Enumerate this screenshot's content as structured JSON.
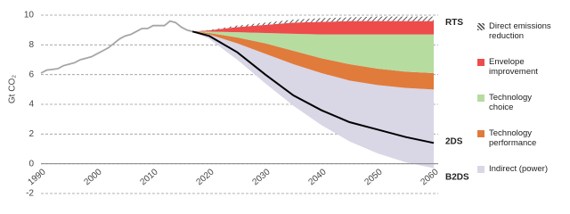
{
  "chart_data": {
    "type": "stacked_area",
    "y_label": "Gt CO₂",
    "xlim": [
      1990,
      2060
    ],
    "xticks": [
      1990,
      2000,
      2010,
      2020,
      2030,
      2040,
      2050,
      2060
    ],
    "ylim": [
      -2,
      10
    ],
    "yticks": [
      -2,
      0,
      2,
      4,
      6,
      8,
      10
    ],
    "grid": true,
    "history": {
      "color": "#a6a6a6",
      "x": [
        1990,
        1991,
        1992,
        1993,
        1994,
        1995,
        1996,
        1997,
        1998,
        1999,
        2000,
        2001,
        2002,
        2003,
        2004,
        2005,
        2006,
        2007,
        2008,
        2009,
        2010,
        2011,
        2012,
        2013,
        2014,
        2015,
        2016,
        2017
      ],
      "values": [
        6.1,
        6.3,
        6.35,
        6.4,
        6.6,
        6.7,
        6.8,
        7.0,
        7.1,
        7.2,
        7.4,
        7.6,
        7.8,
        8.1,
        8.4,
        8.6,
        8.7,
        8.9,
        9.1,
        9.1,
        9.3,
        9.3,
        9.3,
        9.6,
        9.5,
        9.2,
        9.0,
        8.9
      ]
    },
    "x": [
      2017,
      2020,
      2025,
      2030,
      2035,
      2040,
      2045,
      2050,
      2055,
      2060
    ],
    "top_label": "RTS",
    "lines": [
      {
        "name": "2DS",
        "color": "#000000",
        "values": [
          8.9,
          8.6,
          7.5,
          6.0,
          4.6,
          3.6,
          2.8,
          2.3,
          1.8,
          1.4
        ]
      },
      {
        "name": "B2DS",
        "color": "#d9d6e6",
        "values": [
          8.9,
          8.4,
          7.0,
          5.4,
          3.9,
          2.6,
          1.5,
          0.7,
          0.1,
          -0.3
        ]
      }
    ],
    "series": [
      {
        "name": "Indirect (power)",
        "color": "#d9d6e6",
        "values": [
          0,
          0.3,
          1.1,
          2.0,
          2.8,
          3.5,
          4.1,
          4.6,
          5.0,
          5.3
        ]
      },
      {
        "name": "Technology performance",
        "color": "#e07b3c",
        "values": [
          0,
          0.1,
          0.4,
          0.7,
          0.9,
          1.0,
          1.1,
          1.1,
          1.1,
          1.1
        ]
      },
      {
        "name": "Technology choice",
        "color": "#b6dca0",
        "values": [
          0,
          0.1,
          0.35,
          0.7,
          1.15,
          1.6,
          2.0,
          2.3,
          2.5,
          2.6
        ]
      },
      {
        "name": "Envelope improvement",
        "color": "#ee4b4b",
        "values": [
          0,
          0.08,
          0.35,
          0.55,
          0.75,
          0.85,
          0.9,
          0.9,
          0.9,
          0.9
        ]
      },
      {
        "name": "Direct emissions reduction",
        "color": "#555555",
        "hatch": true,
        "values": [
          0,
          0.02,
          0.1,
          0.15,
          0.2,
          0.25,
          0.25,
          0.3,
          0.3,
          0.3
        ]
      }
    ]
  }
}
